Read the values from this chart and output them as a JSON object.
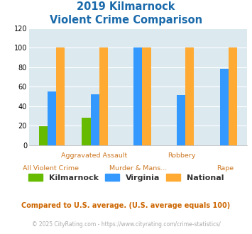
{
  "title_line1": "2019 Kilmarnock",
  "title_line2": "Violent Crime Comparison",
  "categories": [
    "All Violent Crime",
    "Aggravated Assault",
    "Murder & Mans...",
    "Robbery",
    "Rape"
  ],
  "x_labels_row1": [
    "",
    "Aggravated Assault",
    "",
    "Robbery",
    ""
  ],
  "x_labels_row2": [
    "All Violent Crime",
    "",
    "Murder & Mans...",
    "",
    "Rape"
  ],
  "kilmarnock": [
    19,
    28,
    0,
    0,
    0
  ],
  "virginia": [
    55,
    52,
    100,
    51,
    78
  ],
  "national": [
    100,
    100,
    100,
    100,
    100
  ],
  "kilmarnock_color": "#66bb00",
  "virginia_color": "#3399ff",
  "national_color": "#ffaa33",
  "ylim": [
    0,
    120
  ],
  "yticks": [
    0,
    20,
    40,
    60,
    80,
    100,
    120
  ],
  "bg_color": "#dce9ef",
  "title_color": "#1a6aab",
  "xlabel_color": "#cc7722",
  "footer_text1": "Compared to U.S. average. (U.S. average equals 100)",
  "footer_text2": "© 2025 CityRating.com - https://www.cityrating.com/crime-statistics/",
  "footer_color1": "#cc6600",
  "footer_color2": "#aaaaaa",
  "legend_labels": [
    "Kilmarnock",
    "Virginia",
    "National"
  ],
  "grid_color": "#ffffff",
  "bar_width": 0.2
}
